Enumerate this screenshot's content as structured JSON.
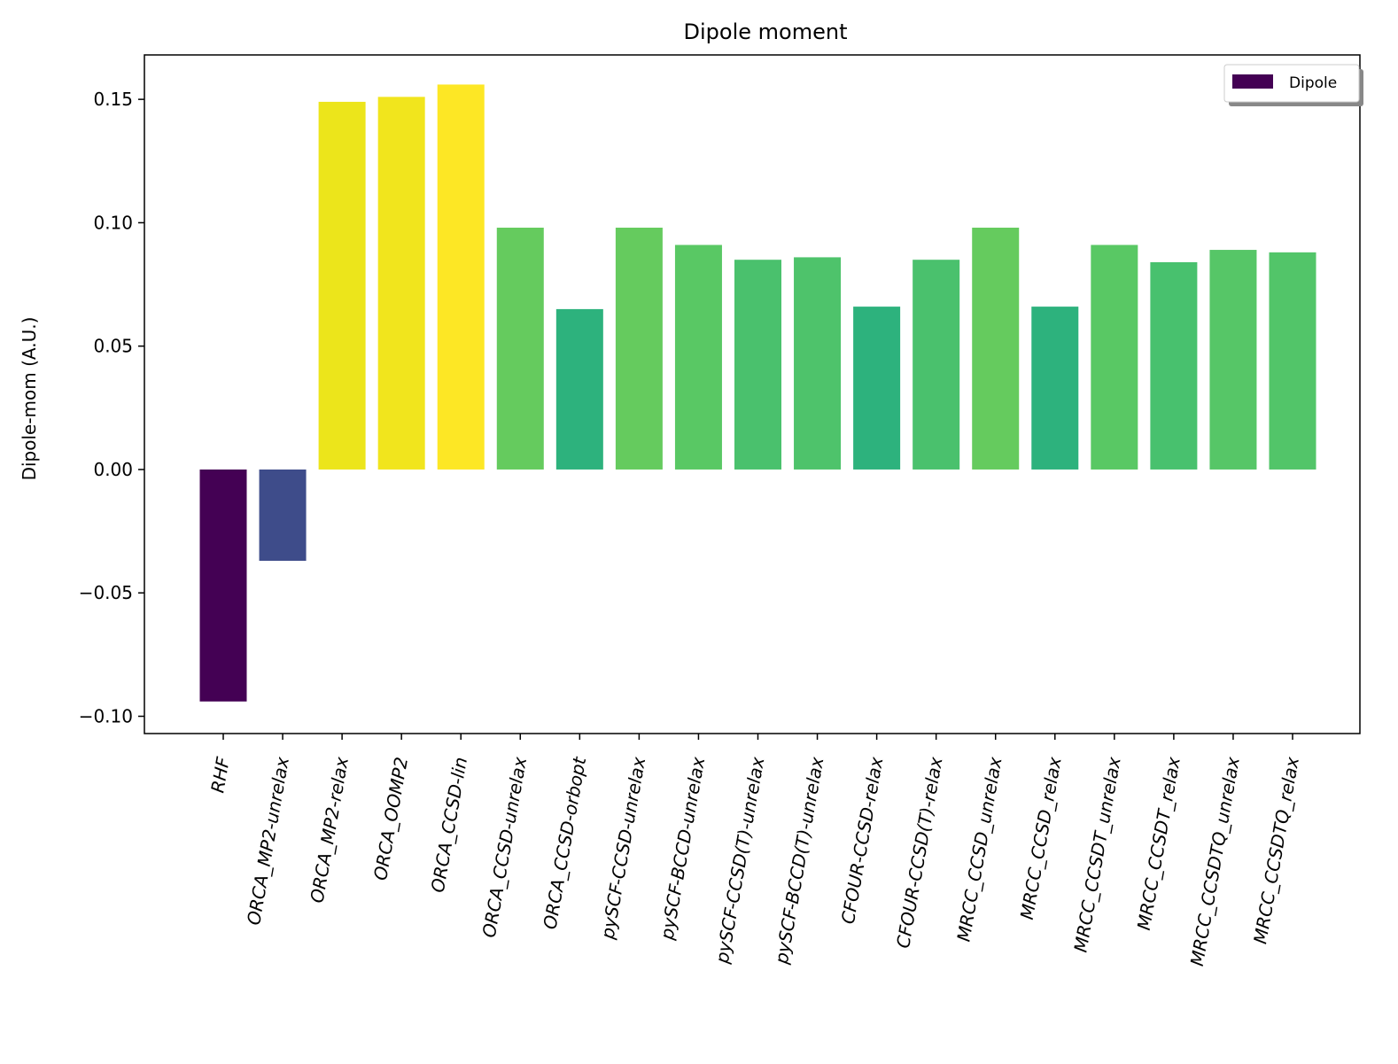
{
  "chart_data": {
    "type": "bar",
    "title": "Dipole moment",
    "xlabel": "",
    "ylabel": "Dipole-mom (A.U.)",
    "ylim": [
      -0.107,
      0.168
    ],
    "yticks": [
      -0.1,
      -0.05,
      0.0,
      0.05,
      0.1,
      0.15
    ],
    "ytick_labels": [
      "−0.10",
      "−0.05",
      "0.00",
      "0.05",
      "0.10",
      "0.15"
    ],
    "grid": false,
    "legend": {
      "placement": "top-right",
      "entries": [
        {
          "label": "Dipole",
          "color": "#440154"
        }
      ]
    },
    "categories": [
      "RHF",
      "ORCA_MP2-unrelax",
      "ORCA_MP2-relax",
      "ORCA_OOMP2",
      "ORCA_CCSD-lin",
      "ORCA_CCSD-unrelax",
      "ORCA_CCSD-orbopt",
      "pySCF-CCSD-unrelax",
      "pySCF-BCCD-unrelax",
      "pySCF-CCSD(T)-unrelax",
      "pySCF-BCCD(T)-unrelax",
      "CFOUR-CCSD-relax",
      "CFOUR-CCSD(T)-relax",
      "MRCC_CCSD_unrelax",
      "MRCC_CCSD_relax",
      "MRCC_CCSDT_unrelax",
      "MRCC_CCSDT_relax",
      "MRCC_CCSDTQ_unrelax",
      "MRCC_CCSDTQ_relax"
    ],
    "values": [
      -0.094,
      -0.037,
      0.149,
      0.151,
      0.156,
      0.098,
      0.065,
      0.098,
      0.091,
      0.085,
      0.086,
      0.066,
      0.085,
      0.098,
      0.066,
      0.091,
      0.084,
      0.089,
      0.088
    ],
    "colors": [
      "#440154",
      "#3e4c8a",
      "#ece51b",
      "#f1e51d",
      "#fde725",
      "#65cb5e",
      "#2db27d",
      "#65cb5e",
      "#59c864",
      "#4ac16d",
      "#4ec36b",
      "#2db27d",
      "#4ac16d",
      "#65cb5e",
      "#2db27d",
      "#59c864",
      "#48c16e",
      "#56c667",
      "#52c569"
    ]
  }
}
